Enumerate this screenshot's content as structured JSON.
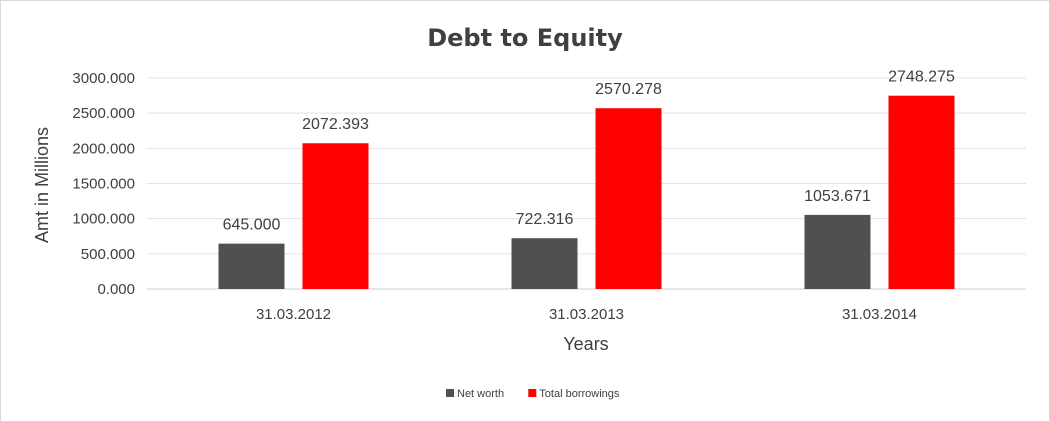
{
  "chart_data": {
    "type": "bar",
    "title": "Debt to Equity",
    "xlabel": "Years",
    "ylabel": "Amt in Millions",
    "categories": [
      "31.03.2012",
      "31.03.2013",
      "31.03.2014"
    ],
    "series": [
      {
        "name": "Net worth",
        "values": [
          645.0,
          722.316,
          1053.671
        ],
        "labels": [
          "645.000",
          "722.316",
          "1053.671"
        ],
        "color": "#505050"
      },
      {
        "name": "Total borrowings",
        "values": [
          2072.393,
          2570.278,
          2748.275
        ],
        "labels": [
          "2072.393",
          "2570.278",
          "2748.275"
        ],
        "color": "#ff0000"
      }
    ],
    "ylim": [
      0,
      3000
    ],
    "yticks": [
      "0.000",
      "500.000",
      "1000.000",
      "1500.000",
      "2000.000",
      "2500.000",
      "3000.000"
    ],
    "grid": true,
    "legend": "bottom"
  }
}
